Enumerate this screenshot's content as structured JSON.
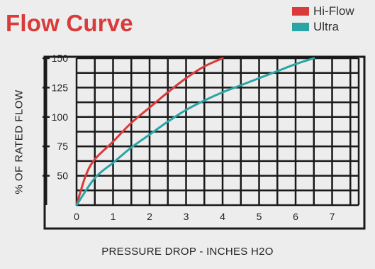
{
  "chart_data": {
    "type": "line",
    "title": "Flow Curve",
    "xlabel": "PRESSURE DROP - INCHES H2O",
    "ylabel": "% OF RATED FLOW",
    "x_ticks": [
      0,
      1,
      2,
      3,
      4,
      5,
      6,
      7
    ],
    "y_ticks": [
      50,
      75,
      100,
      125,
      150
    ],
    "xlim": [
      0,
      7.5
    ],
    "ylim": [
      25,
      150
    ],
    "grid": true,
    "legend_position": "top-right",
    "series": [
      {
        "name": "Hi-Flow",
        "color": "#d93a3a",
        "points": [
          [
            0,
            25
          ],
          [
            0.25,
            50
          ],
          [
            0.5,
            64
          ],
          [
            1,
            79
          ],
          [
            1.5,
            95
          ],
          [
            2,
            108
          ],
          [
            2.5,
            121
          ],
          [
            3,
            133
          ],
          [
            3.5,
            143
          ],
          [
            4,
            150
          ]
        ]
      },
      {
        "name": "Ultra",
        "color": "#2aa5a5",
        "points": [
          [
            0,
            25
          ],
          [
            0.5,
            48
          ],
          [
            1,
            61
          ],
          [
            1.5,
            74
          ],
          [
            2,
            85
          ],
          [
            2.5,
            96
          ],
          [
            3,
            106
          ],
          [
            3.5,
            114
          ],
          [
            4,
            121
          ],
          [
            4.5,
            127
          ],
          [
            5,
            133
          ],
          [
            5.5,
            139
          ],
          [
            6,
            145
          ],
          [
            6.5,
            150
          ]
        ]
      }
    ]
  }
}
